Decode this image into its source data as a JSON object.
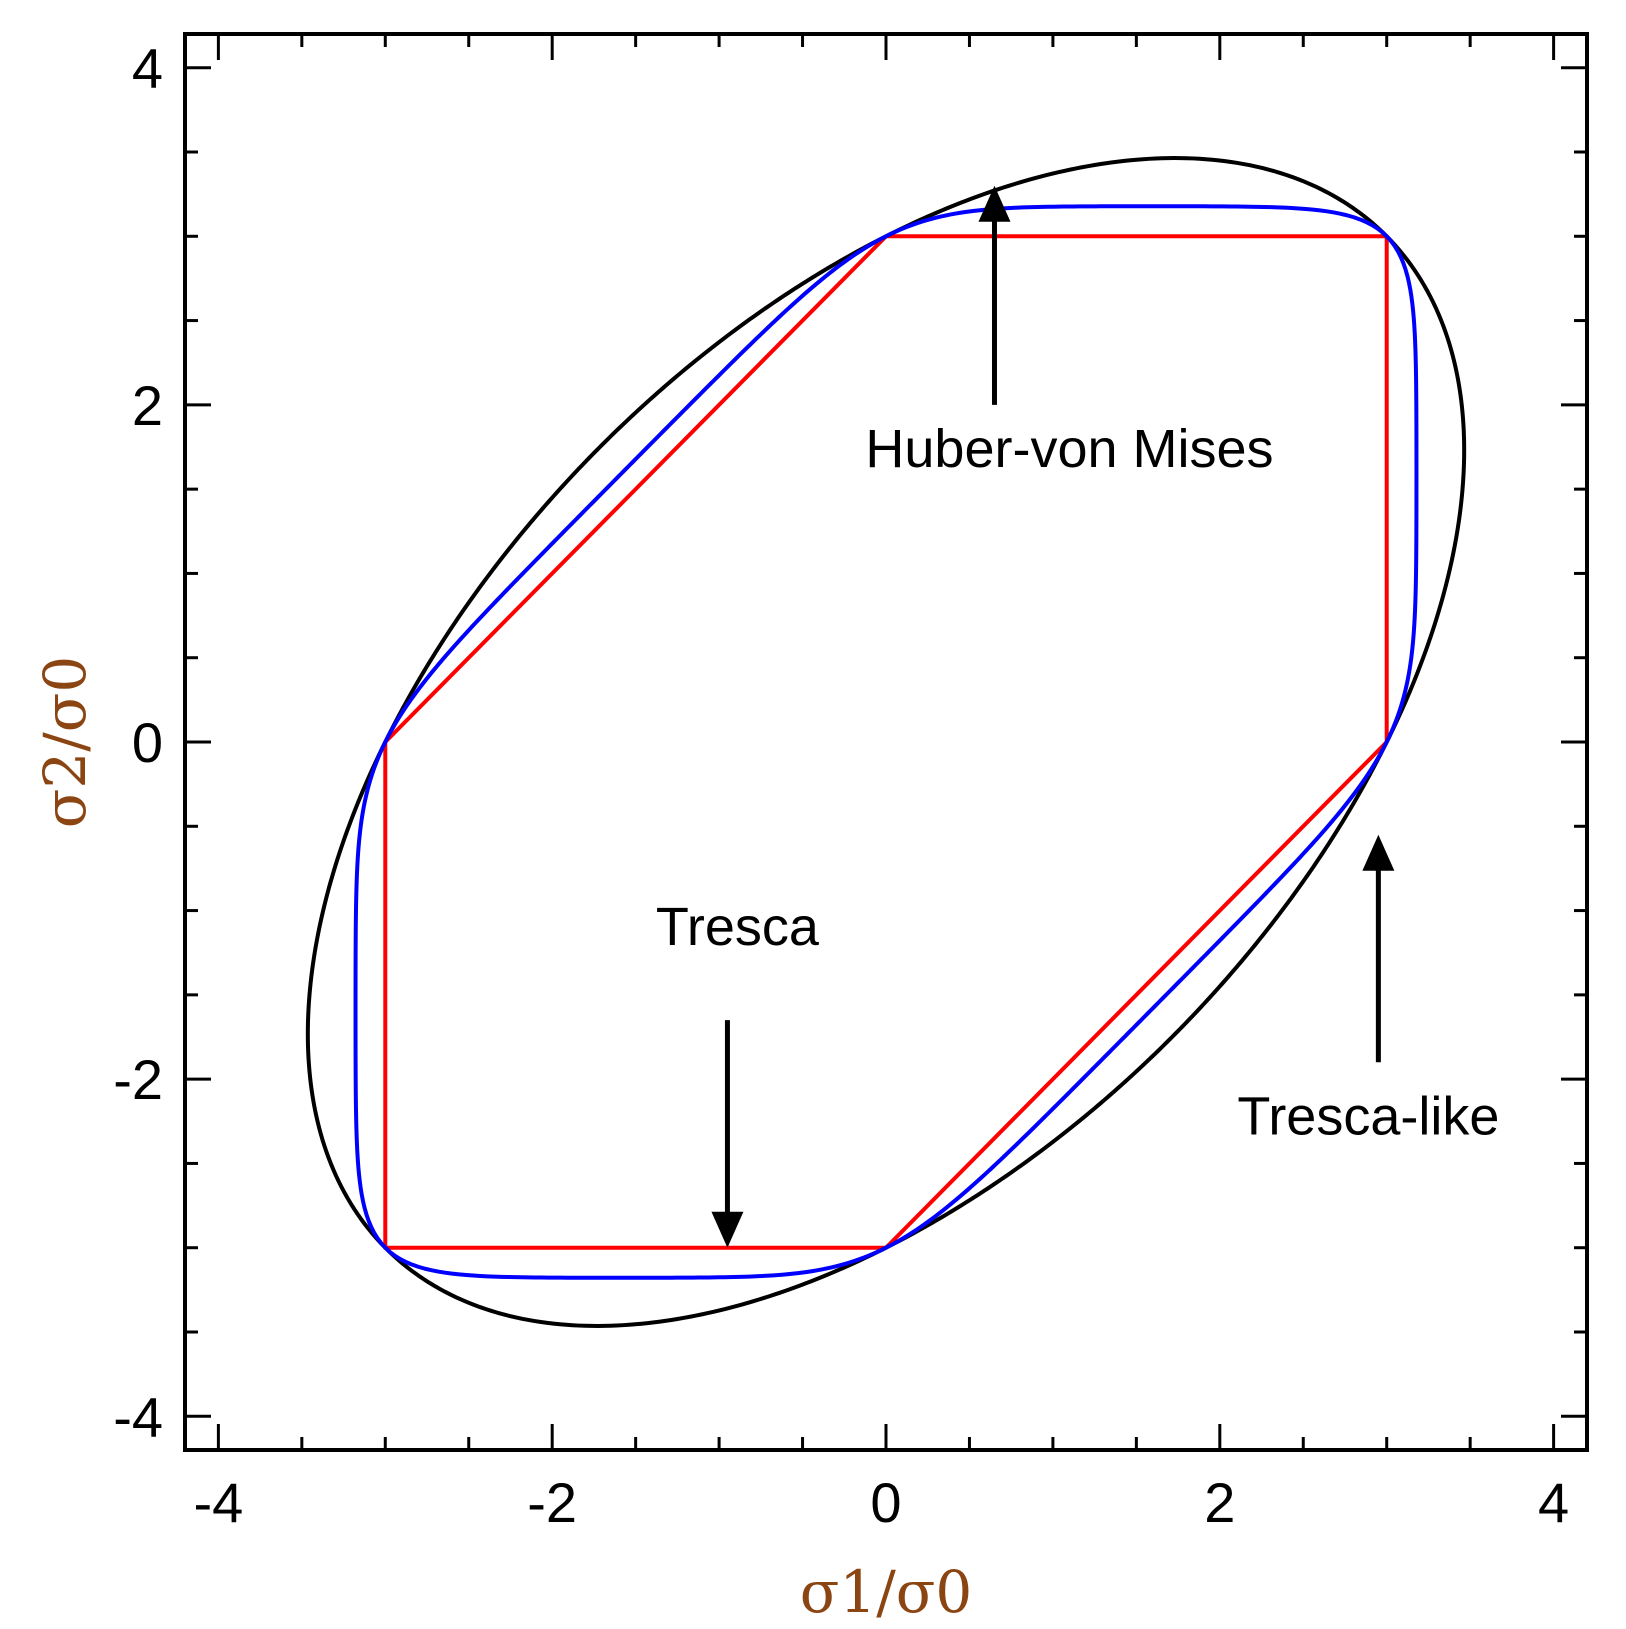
{
  "chart_data": {
    "type": "line",
    "title": "",
    "xlabel": "σ1/σ0",
    "ylabel": "σ2/σ0",
    "xlim": [
      -4.2,
      4.2
    ],
    "ylim": [
      -4.2,
      4.2
    ],
    "xticks": [
      -4,
      -2,
      0,
      2,
      4
    ],
    "yticks": [
      -4,
      -2,
      0,
      2,
      4
    ],
    "xtick_labels": [
      "-4",
      "-2",
      "0",
      "2",
      "4"
    ],
    "ytick_labels": [
      "-4",
      "-2",
      "0",
      "2",
      "4"
    ],
    "grid": false,
    "label_color": "#8B4513",
    "series": [
      {
        "name": "Tresca",
        "color": "#ff0000",
        "x": [
          -3,
          0,
          3,
          3,
          0,
          -3,
          -3
        ],
        "y": [
          0,
          3,
          3,
          0,
          -3,
          -3,
          0
        ]
      },
      {
        "name": "Huber-von Mises",
        "color": "#000000",
        "radius": 3,
        "equation": "s1^2 - s1*s2 + s2^2 = radius^2"
      },
      {
        "name": "Tresca-like",
        "color": "#0000ff",
        "radius": 3,
        "exponent": 12,
        "equation": "|s1-s2|^n + |s1|^n + |s2|^n = 2*radius^n"
      }
    ],
    "annotations": [
      {
        "text": "Huber-von Mises",
        "arrow_from": [
          0.65,
          2.0
        ],
        "arrow_to": [
          0.65,
          3.3
        ]
      },
      {
        "text": "Tresca",
        "arrow_from": [
          -0.95,
          -1.65
        ],
        "arrow_to": [
          -0.95,
          -3.0
        ]
      },
      {
        "text": "Tresca-like",
        "arrow_from": [
          2.95,
          -1.9
        ],
        "arrow_to": [
          2.95,
          -0.55
        ]
      }
    ]
  }
}
